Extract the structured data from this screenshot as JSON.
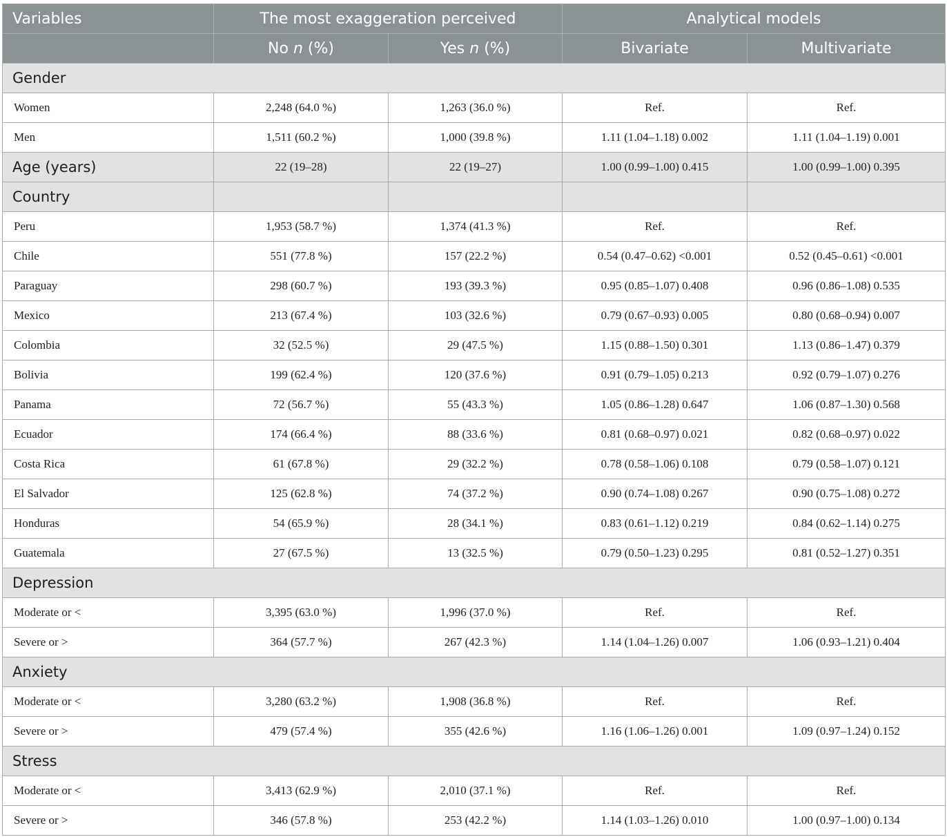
{
  "header": {
    "variables": "Variables",
    "exaggeration": "The most exaggeration perceived",
    "analytical": "Analytical models",
    "no_pre": "No ",
    "yes_pre": "Yes ",
    "n": "n",
    "pct": " (%)",
    "bivariate": "Bivariate",
    "multivariate": "Multivariate"
  },
  "rows": [
    {
      "type": "group-span",
      "label": "Gender"
    },
    {
      "type": "row",
      "label": "Women",
      "no": "2,248 (64.0 %)",
      "yes": "1,263 (36.0 %)",
      "bi": "Ref.",
      "multi": "Ref."
    },
    {
      "type": "row",
      "label": "Men",
      "no": "1,511 (60.2 %)",
      "yes": "1,000 (39.8 %)",
      "bi": "1.11 (1.04–1.18) 0.002",
      "multi": "1.11 (1.04–1.19) 0.001"
    },
    {
      "type": "group-cells",
      "label": "Age (years)",
      "no": "22 (19–28)",
      "yes": "22 (19–27)",
      "bi": "1.00 (0.99–1.00) 0.415",
      "multi": "1.00 (0.99–1.00) 0.395"
    },
    {
      "type": "group-cells",
      "label": "Country",
      "no": "",
      "yes": "",
      "bi": "",
      "multi": ""
    },
    {
      "type": "row",
      "label": "Peru",
      "no": "1,953 (58.7 %)",
      "yes": "1,374 (41.3 %)",
      "bi": "Ref.",
      "multi": "Ref."
    },
    {
      "type": "row",
      "label": "Chile",
      "no": "551 (77.8 %)",
      "yes": "157 (22.2 %)",
      "bi": "0.54 (0.47–0.62) <0.001",
      "multi": "0.52 (0.45–0.61) <0.001"
    },
    {
      "type": "row",
      "label": "Paraguay",
      "no": "298 (60.7 %)",
      "yes": "193 (39.3 %)",
      "bi": "0.95 (0.85–1.07) 0.408",
      "multi": "0.96 (0.86–1.08) 0.535"
    },
    {
      "type": "row",
      "label": "Mexico",
      "no": "213 (67.4 %)",
      "yes": "103 (32.6 %)",
      "bi": "0.79 (0.67–0.93) 0.005",
      "multi": "0.80 (0.68–0.94) 0.007"
    },
    {
      "type": "row",
      "label": "Colombia",
      "no": "32 (52.5 %)",
      "yes": "29 (47.5 %)",
      "bi": "1.15 (0.88–1.50) 0.301",
      "multi": "1.13 (0.86–1.47) 0.379"
    },
    {
      "type": "row",
      "label": "Bolivia",
      "no": "199 (62.4 %)",
      "yes": "120 (37.6 %)",
      "bi": "0.91 (0.79–1.05) 0.213",
      "multi": "0.92 (0.79–1.07) 0.276"
    },
    {
      "type": "row",
      "label": "Panama",
      "no": "72 (56.7 %)",
      "yes": "55 (43.3 %)",
      "bi": "1.05 (0.86–1.28) 0.647",
      "multi": "1.06 (0.87–1.30) 0.568"
    },
    {
      "type": "row",
      "label": "Ecuador",
      "no": "174 (66.4 %)",
      "yes": "88 (33.6 %)",
      "bi": "0.81 (0.68–0.97) 0.021",
      "multi": "0.82 (0.68–0.97) 0.022"
    },
    {
      "type": "row",
      "label": "Costa Rica",
      "no": "61 (67.8 %)",
      "yes": "29 (32.2 %)",
      "bi": "0.78 (0.58–1.06) 0.108",
      "multi": "0.79 (0.58–1.07) 0.121"
    },
    {
      "type": "row",
      "label": "El Salvador",
      "no": "125 (62.8 %)",
      "yes": "74 (37.2 %)",
      "bi": "0.90 (0.74–1.08) 0.267",
      "multi": "0.90 (0.75–1.08) 0.272"
    },
    {
      "type": "row",
      "label": "Honduras",
      "no": "54 (65.9 %)",
      "yes": "28 (34.1 %)",
      "bi": "0.83 (0.61–1.12) 0.219",
      "multi": "0.84 (0.62–1.14) 0.275"
    },
    {
      "type": "row",
      "label": "Guatemala",
      "no": "27 (67.5 %)",
      "yes": "13 (32.5 %)",
      "bi": "0.79 (0.50–1.23) 0.295",
      "multi": "0.81 (0.52–1.27) 0.351"
    },
    {
      "type": "group-span",
      "label": "Depression"
    },
    {
      "type": "row",
      "label": "Moderate or <",
      "no": "3,395 (63.0 %)",
      "yes": "1,996 (37.0 %)",
      "bi": "Ref.",
      "multi": "Ref."
    },
    {
      "type": "row",
      "label": "Severe or >",
      "no": "364 (57.7 %)",
      "yes": "267 (42.3 %)",
      "bi": "1.14 (1.04–1.26) 0.007",
      "multi": "1.06 (0.93–1.21) 0.404"
    },
    {
      "type": "group-span",
      "label": "Anxiety"
    },
    {
      "type": "row",
      "label": "Moderate or <",
      "no": "3,280 (63.2 %)",
      "yes": "1,908 (36.8 %)",
      "bi": "Ref.",
      "multi": "Ref."
    },
    {
      "type": "row",
      "label": "Severe or >",
      "no": "479 (57.4 %)",
      "yes": "355 (42.6 %)",
      "bi": "1.16 (1.06–1.26) 0.001",
      "multi": "1.09 (0.97–1.24) 0.152"
    },
    {
      "type": "group-span",
      "label": "Stress"
    },
    {
      "type": "row",
      "label": "Moderate or <",
      "no": "3,413 (62.9 %)",
      "yes": "2,010 (37.1 %)",
      "bi": "Ref.",
      "multi": "Ref."
    },
    {
      "type": "row",
      "label": "Severe or >",
      "no": "346 (57.8 %)",
      "yes": "253 (42.2 %)",
      "bi": "1.14 (1.03–1.26) 0.010",
      "multi": "1.00 (0.97–1.00) 0.134"
    }
  ]
}
